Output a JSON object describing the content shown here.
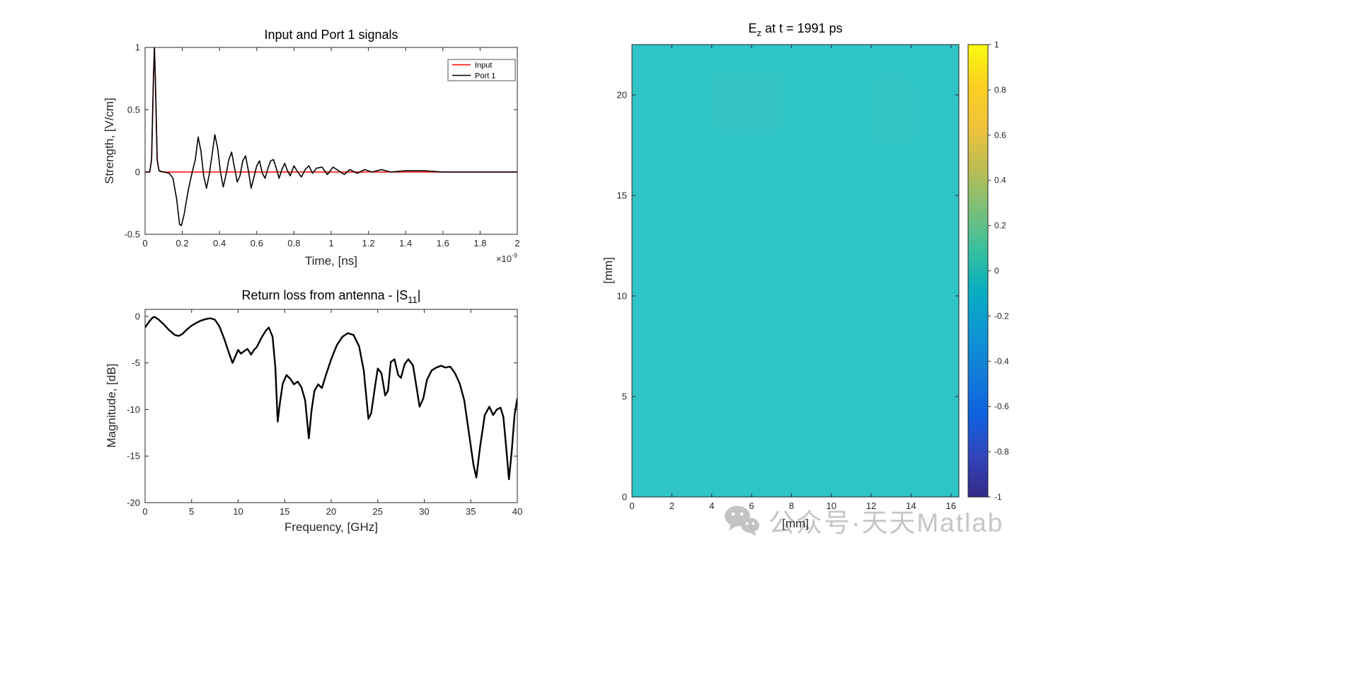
{
  "page": {
    "background": "#ffffff",
    "axis_color": "#262626"
  },
  "watermark": {
    "icon": "wechat-icon",
    "text": "公众号·天天Matlab",
    "color": "#c6c6c6"
  },
  "chart_data": [
    {
      "id": "signals",
      "type": "line",
      "title": "Input and Port 1 signals",
      "xlabel": "Time, [ns]",
      "ylabel": "Strength, [V/cm]",
      "x_exponent": {
        "base": "×10",
        "power": "-9"
      },
      "xlim": [
        0,
        2
      ],
      "ylim": [
        -0.5,
        1
      ],
      "xticks": {
        "values": [
          0,
          0.2,
          0.4,
          0.6,
          0.8,
          1,
          1.2,
          1.4,
          1.6,
          1.8,
          2
        ],
        "labels": [
          "0",
          "0.2",
          "0.4",
          "0.6",
          "0.8",
          "1",
          "1.2",
          "1.4",
          "1.6",
          "1.8",
          "2"
        ]
      },
      "yticks": {
        "values": [
          -0.5,
          0,
          0.5,
          1
        ],
        "labels": [
          "-0.5",
          "0",
          "0.5",
          "1"
        ]
      },
      "legend": {
        "position": "northeast",
        "entries": [
          {
            "label": "Input",
            "color": "#ff0000"
          },
          {
            "label": "Port 1",
            "color": "#000000"
          }
        ]
      },
      "series": [
        {
          "name": "Input",
          "color": "#ff0000",
          "width": 1.6,
          "points": [
            [
              0,
              0
            ],
            [
              0.025,
              0
            ],
            [
              0.035,
              0.1
            ],
            [
              0.045,
              0.75
            ],
            [
              0.05,
              1.0
            ],
            [
              0.055,
              0.75
            ],
            [
              0.065,
              0.1
            ],
            [
              0.075,
              0.01
            ],
            [
              0.09,
              0
            ],
            [
              2,
              0
            ]
          ]
        },
        {
          "name": "Port 1",
          "color": "#000000",
          "width": 1.6,
          "points": [
            [
              0,
              0
            ],
            [
              0.025,
              0
            ],
            [
              0.035,
              0.1
            ],
            [
              0.045,
              0.75
            ],
            [
              0.05,
              1.0
            ],
            [
              0.055,
              0.75
            ],
            [
              0.065,
              0.1
            ],
            [
              0.075,
              0.01
            ],
            [
              0.1,
              0
            ],
            [
              0.13,
              -0.01
            ],
            [
              0.15,
              -0.05
            ],
            [
              0.17,
              -0.22
            ],
            [
              0.185,
              -0.42
            ],
            [
              0.195,
              -0.43
            ],
            [
              0.21,
              -0.34
            ],
            [
              0.23,
              -0.16
            ],
            [
              0.25,
              -0.02
            ],
            [
              0.27,
              0.1
            ],
            [
              0.285,
              0.28
            ],
            [
              0.3,
              0.17
            ],
            [
              0.315,
              -0.03
            ],
            [
              0.33,
              -0.13
            ],
            [
              0.345,
              -0.02
            ],
            [
              0.36,
              0.14
            ],
            [
              0.375,
              0.3
            ],
            [
              0.39,
              0.19
            ],
            [
              0.405,
              0
            ],
            [
              0.42,
              -0.12
            ],
            [
              0.435,
              -0.02
            ],
            [
              0.45,
              0.1
            ],
            [
              0.465,
              0.16
            ],
            [
              0.48,
              0.04
            ],
            [
              0.495,
              -0.08
            ],
            [
              0.51,
              -0.03
            ],
            [
              0.525,
              0.09
            ],
            [
              0.54,
              0.13
            ],
            [
              0.555,
              0.01
            ],
            [
              0.57,
              -0.13
            ],
            [
              0.585,
              -0.04
            ],
            [
              0.6,
              0.05
            ],
            [
              0.615,
              0.09
            ],
            [
              0.63,
              -0.01
            ],
            [
              0.645,
              -0.05
            ],
            [
              0.66,
              0.03
            ],
            [
              0.675,
              0.09
            ],
            [
              0.69,
              0.1
            ],
            [
              0.705,
              0.03
            ],
            [
              0.72,
              -0.05
            ],
            [
              0.735,
              0.02
            ],
            [
              0.75,
              0.07
            ],
            [
              0.765,
              0.01
            ],
            [
              0.78,
              -0.03
            ],
            [
              0.8,
              0.05
            ],
            [
              0.82,
              0
            ],
            [
              0.84,
              -0.04
            ],
            [
              0.86,
              0.02
            ],
            [
              0.88,
              0.05
            ],
            [
              0.9,
              -0.01
            ],
            [
              0.92,
              0.03
            ],
            [
              0.95,
              0.04
            ],
            [
              0.98,
              -0.02
            ],
            [
              1.01,
              0.04
            ],
            [
              1.04,
              0.01
            ],
            [
              1.07,
              -0.02
            ],
            [
              1.1,
              0.02
            ],
            [
              1.14,
              -0.01
            ],
            [
              1.18,
              0.02
            ],
            [
              1.22,
              0
            ],
            [
              1.27,
              0.02
            ],
            [
              1.32,
              0
            ],
            [
              1.4,
              0.01
            ],
            [
              1.5,
              0.01
            ],
            [
              1.6,
              0
            ],
            [
              1.7,
              0
            ],
            [
              1.8,
              0
            ],
            [
              1.9,
              0
            ],
            [
              2,
              0
            ]
          ]
        }
      ]
    },
    {
      "id": "s11",
      "type": "line",
      "title_parts": {
        "pre": "Return loss from antenna - |S",
        "sub": "11",
        "post": "|"
      },
      "xlabel": "Frequency, [GHz]",
      "ylabel": "Magnitude, [dB]",
      "xlim": [
        0,
        40
      ],
      "ylim": [
        -20,
        0.75
      ],
      "xticks": {
        "values": [
          0,
          5,
          10,
          15,
          20,
          25,
          30,
          35,
          40
        ],
        "labels": [
          "0",
          "5",
          "10",
          "15",
          "20",
          "25",
          "30",
          "35",
          "40"
        ]
      },
      "yticks": {
        "values": [
          0,
          -5,
          -10,
          -15,
          -20
        ],
        "labels": [
          "0",
          "-5",
          "-10",
          "-15",
          "-20"
        ]
      },
      "series": [
        {
          "name": "S11",
          "color": "#000000",
          "width": 2.4,
          "points": [
            [
              0,
              -1.2
            ],
            [
              0.4,
              -0.6
            ],
            [
              0.8,
              -0.15
            ],
            [
              1,
              -0.05
            ],
            [
              1.4,
              -0.3
            ],
            [
              2,
              -0.85
            ],
            [
              2.6,
              -1.5
            ],
            [
              3.2,
              -2.0
            ],
            [
              3.6,
              -2.1
            ],
            [
              4,
              -1.9
            ],
            [
              4.5,
              -1.4
            ],
            [
              5,
              -1.0
            ],
            [
              5.5,
              -0.7
            ],
            [
              6,
              -0.45
            ],
            [
              6.5,
              -0.3
            ],
            [
              7,
              -0.2
            ],
            [
              7.5,
              -0.35
            ],
            [
              8,
              -1.1
            ],
            [
              8.5,
              -2.4
            ],
            [
              9,
              -3.9
            ],
            [
              9.4,
              -5.0
            ],
            [
              9.7,
              -4.3
            ],
            [
              10,
              -3.6
            ],
            [
              10.3,
              -4.0
            ],
            [
              10.7,
              -3.7
            ],
            [
              11,
              -3.5
            ],
            [
              11.4,
              -4.1
            ],
            [
              11.7,
              -3.6
            ],
            [
              12,
              -3.3
            ],
            [
              12.5,
              -2.3
            ],
            [
              13,
              -1.5
            ],
            [
              13.3,
              -1.2
            ],
            [
              13.7,
              -2.2
            ],
            [
              14,
              -5.5
            ],
            [
              14.25,
              -11.3
            ],
            [
              14.5,
              -9.2
            ],
            [
              14.8,
              -7.2
            ],
            [
              15.2,
              -6.3
            ],
            [
              15.6,
              -6.7
            ],
            [
              16,
              -7.3
            ],
            [
              16.4,
              -7.0
            ],
            [
              16.8,
              -7.6
            ],
            [
              17.2,
              -9.0
            ],
            [
              17.6,
              -13.1
            ],
            [
              17.9,
              -10.0
            ],
            [
              18.2,
              -8.0
            ],
            [
              18.6,
              -7.3
            ],
            [
              19,
              -7.7
            ],
            [
              19.4,
              -6.4
            ],
            [
              20,
              -4.6
            ],
            [
              20.6,
              -3.1
            ],
            [
              21.2,
              -2.2
            ],
            [
              21.8,
              -1.8
            ],
            [
              22.4,
              -2.0
            ],
            [
              23,
              -3.2
            ],
            [
              23.5,
              -5.8
            ],
            [
              24,
              -11.0
            ],
            [
              24.3,
              -10.4
            ],
            [
              24.7,
              -7.6
            ],
            [
              25,
              -5.6
            ],
            [
              25.4,
              -6.1
            ],
            [
              25.8,
              -8.5
            ],
            [
              26.1,
              -8.0
            ],
            [
              26.4,
              -4.9
            ],
            [
              26.8,
              -4.6
            ],
            [
              27.2,
              -6.3
            ],
            [
              27.5,
              -6.6
            ],
            [
              27.9,
              -5.1
            ],
            [
              28.3,
              -4.6
            ],
            [
              28.8,
              -5.3
            ],
            [
              29.2,
              -7.8
            ],
            [
              29.5,
              -9.7
            ],
            [
              29.9,
              -8.8
            ],
            [
              30.3,
              -6.8
            ],
            [
              30.8,
              -5.8
            ],
            [
              31.3,
              -5.5
            ],
            [
              31.8,
              -5.3
            ],
            [
              32.3,
              -5.5
            ],
            [
              32.8,
              -5.4
            ],
            [
              33.3,
              -6.1
            ],
            [
              33.8,
              -7.2
            ],
            [
              34.3,
              -9.0
            ],
            [
              34.8,
              -12.5
            ],
            [
              35.3,
              -16.0
            ],
            [
              35.6,
              -17.3
            ],
            [
              36,
              -14.0
            ],
            [
              36.5,
              -10.6
            ],
            [
              37,
              -9.7
            ],
            [
              37.4,
              -10.6
            ],
            [
              37.8,
              -10.0
            ],
            [
              38.2,
              -9.8
            ],
            [
              38.5,
              -10.8
            ],
            [
              38.8,
              -14.0
            ],
            [
              39.1,
              -17.5
            ],
            [
              39.4,
              -14.5
            ],
            [
              39.7,
              -10.6
            ],
            [
              40,
              -8.8
            ]
          ]
        }
      ]
    },
    {
      "id": "ez-field",
      "type": "heatmap",
      "title_parts": {
        "pre": "E",
        "sub": "z",
        "post": " at t = 1991 ps"
      },
      "xlabel": "[mm]",
      "ylabel": "[mm]",
      "xlim": [
        0,
        16.4
      ],
      "ylim": [
        0,
        22.5
      ],
      "clim": [
        -1,
        1
      ],
      "uniform_value": 0,
      "fill_color": "#2fc4c7",
      "patches": [
        {
          "x": 4.0,
          "y": 18.3,
          "w": 3.6,
          "h": 2.8,
          "color": "#3cc9bd",
          "opacity": 0.4
        },
        {
          "x": 12.1,
          "y": 17.6,
          "w": 2.0,
          "h": 3.2,
          "color": "#3cc9bd",
          "opacity": 0.3
        }
      ],
      "xticks": {
        "values": [
          0,
          2,
          4,
          6,
          8,
          10,
          12,
          14,
          16
        ],
        "labels": [
          "0",
          "2",
          "4",
          "6",
          "8",
          "10",
          "12",
          "14",
          "16"
        ]
      },
      "yticks": {
        "values": [
          0,
          5,
          10,
          15,
          20
        ],
        "labels": [
          "0",
          "5",
          "10",
          "15",
          "20"
        ]
      },
      "colorbar": {
        "colormap": "parula",
        "stops": [
          "#352a87",
          "#3145bc",
          "#0f62e0",
          "#127dd8",
          "#0f96d4",
          "#07aec0",
          "#38bf9e",
          "#7bbf7a",
          "#bcbd53",
          "#efc23a",
          "#fcd021",
          "#f9fb0e"
        ],
        "ticks": {
          "values": [
            1,
            0.8,
            0.6,
            0.4,
            0.2,
            0,
            -0.2,
            -0.4,
            -0.6,
            -0.8,
            -1
          ],
          "labels": [
            "1",
            "0.8",
            "0.6",
            "0.4",
            "0.2",
            "0",
            "-0.2",
            "-0.4",
            "-0.6",
            "-0.8",
            "-1"
          ]
        }
      }
    }
  ]
}
